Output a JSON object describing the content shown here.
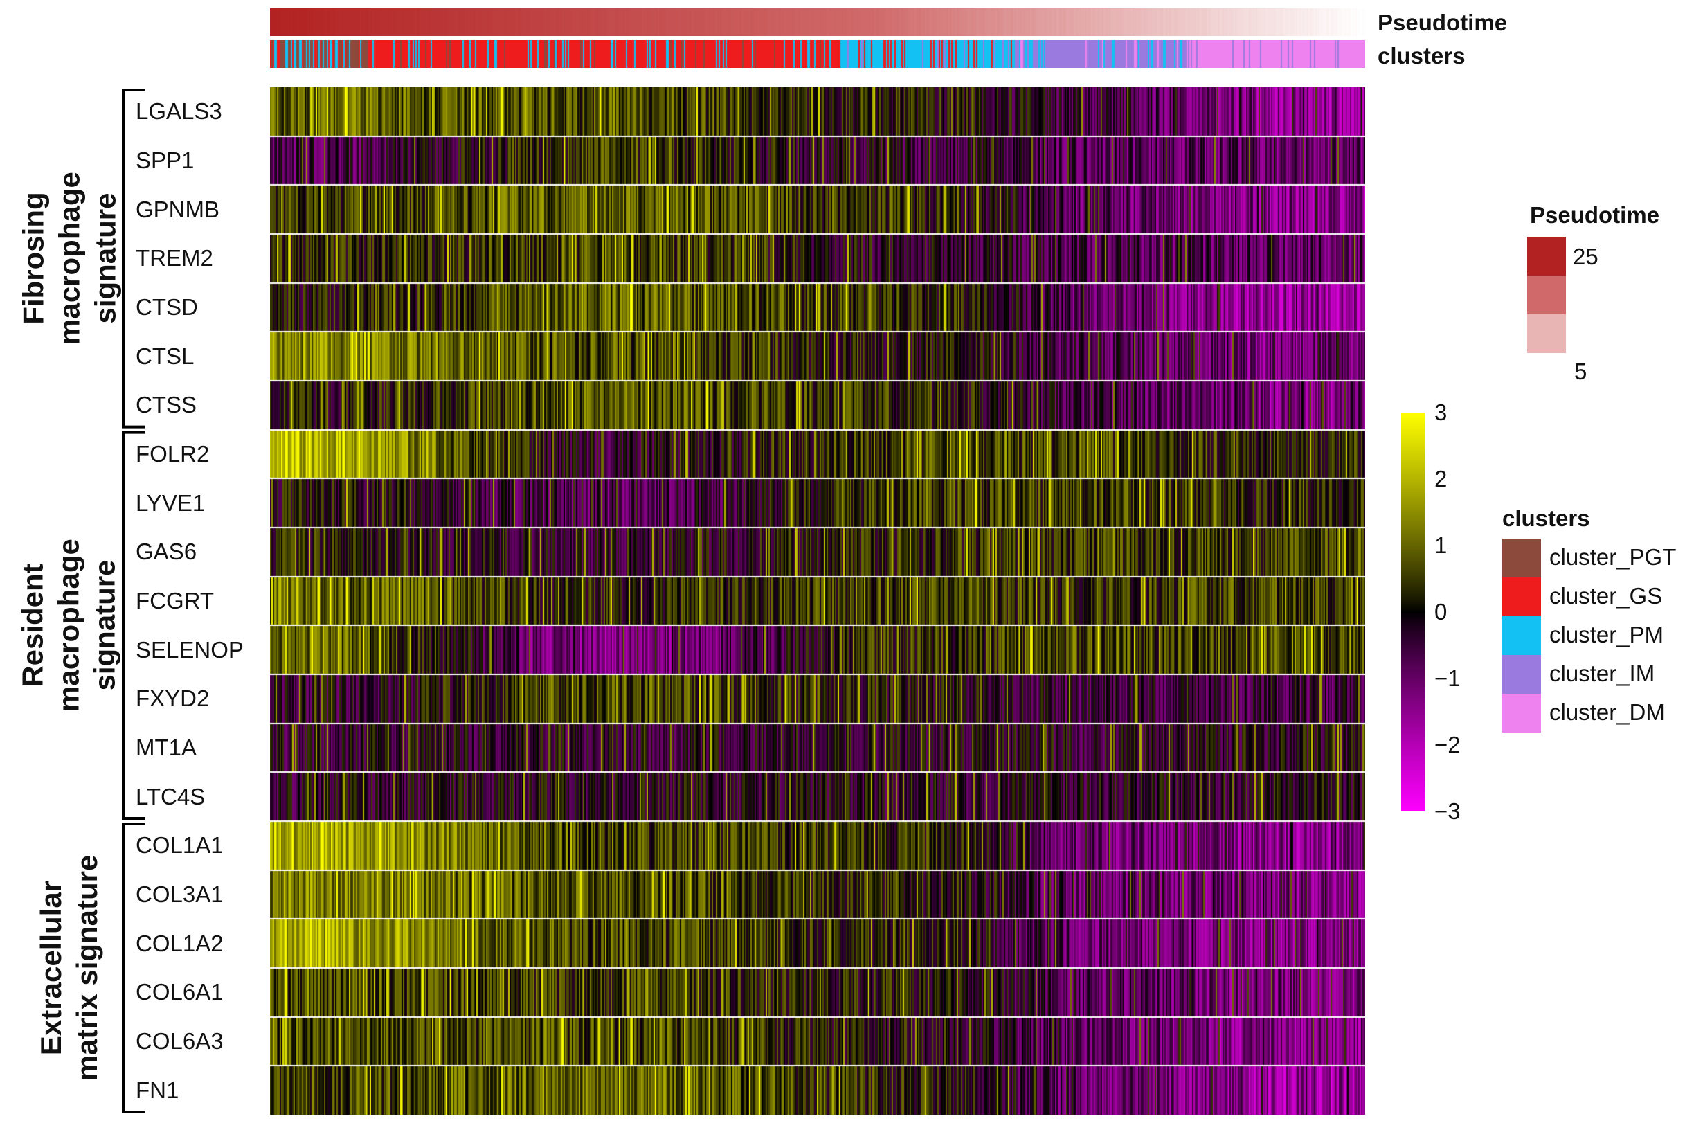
{
  "annotation_labels": {
    "pseudotime": "Pseudotime",
    "clusters": "clusters"
  },
  "groups": [
    {
      "title_lines": [
        "Fibrosing",
        "macrophage",
        "signature"
      ],
      "genes": [
        "LGALS3",
        "SPP1",
        "GPNMB",
        "TREM2",
        "CTSD",
        "CTSL",
        "CTSS"
      ]
    },
    {
      "title_lines": [
        "Resident",
        "macrophage",
        "signature"
      ],
      "genes": [
        "FOLR2",
        "LYVE1",
        "GAS6",
        "FCGRT",
        "SELENOP",
        "FXYD2",
        "MT1A",
        "LTC4S"
      ]
    },
    {
      "title_lines": [
        "Extracellular",
        "matrix signature"
      ],
      "genes": [
        "COL1A1",
        "COL3A1",
        "COL1A2",
        "COL6A1",
        "COL6A3",
        "FN1"
      ]
    }
  ],
  "pseudotime_legend": {
    "title": "Pseudotime",
    "high": "25",
    "low": "5",
    "colors": [
      "#b22222",
      "#d06a6a",
      "#e9b4b4"
    ]
  },
  "clusters_legend": {
    "title": "clusters",
    "items": [
      {
        "label": "cluster_PGT",
        "color": "#8b4a3c"
      },
      {
        "label": "cluster_GS",
        "color": "#ee1c1c"
      },
      {
        "label": "cluster_PM",
        "color": "#13c1f3"
      },
      {
        "label": "cluster_IM",
        "color": "#9b7ae0"
      },
      {
        "label": "cluster_DM",
        "color": "#ee82ee"
      }
    ]
  },
  "colorbar": {
    "ticks": [
      "3",
      "2",
      "1",
      "0",
      "−1",
      "−2",
      "−3"
    ],
    "colors": [
      "#ff00ff",
      "#000000",
      "#ffff00"
    ]
  },
  "chart_data": {
    "type": "heatmap",
    "value_range": [
      -3,
      3
    ],
    "column_order": "pseudotime (cells ordered by pseudotime, high to low)",
    "cluster_segments": [
      {
        "cluster": "cluster_PGT",
        "fraction": 0.09
      },
      {
        "cluster": "cluster_GS",
        "fraction": 0.43
      },
      {
        "cluster": "cluster_PM",
        "fraction": 0.16
      },
      {
        "cluster": "cluster_IM",
        "fraction": 0.16
      },
      {
        "cluster": "cluster_DM",
        "fraction": 0.16
      }
    ],
    "rows": [
      {
        "gene": "LGALS3",
        "means": [
          1.0,
          0.7,
          0.2,
          -0.6,
          -1.5
        ]
      },
      {
        "gene": "SPP1",
        "means": [
          -0.7,
          0.5,
          -0.4,
          -0.8,
          -1.0
        ]
      },
      {
        "gene": "GPNMB",
        "means": [
          0.4,
          1.0,
          0.2,
          -1.0,
          -1.4
        ]
      },
      {
        "gene": "TREM2",
        "means": [
          0.2,
          0.6,
          -0.2,
          -0.7,
          -0.9
        ]
      },
      {
        "gene": "CTSD",
        "means": [
          0.1,
          0.9,
          0.3,
          -0.9,
          -1.6
        ]
      },
      {
        "gene": "CTSL",
        "means": [
          1.4,
          0.7,
          0.0,
          -0.7,
          -1.2
        ]
      },
      {
        "gene": "CTSS",
        "means": [
          0.0,
          0.9,
          0.3,
          -0.7,
          -1.3
        ]
      },
      {
        "gene": "FOLR2",
        "means": [
          2.0,
          -0.3,
          0.6,
          0.6,
          0.3
        ]
      },
      {
        "gene": "LYVE1",
        "means": [
          0.0,
          -0.8,
          0.5,
          0.5,
          0.2
        ]
      },
      {
        "gene": "GAS6",
        "means": [
          0.2,
          -0.4,
          0.3,
          0.5,
          0.5
        ]
      },
      {
        "gene": "FCGRT",
        "means": [
          1.0,
          0.2,
          0.6,
          0.4,
          0.6
        ]
      },
      {
        "gene": "SELENOP",
        "means": [
          1.0,
          -1.4,
          0.4,
          0.6,
          0.6
        ]
      },
      {
        "gene": "FXYD2",
        "means": [
          -0.4,
          0.7,
          0.0,
          -0.5,
          -0.6
        ]
      },
      {
        "gene": "MT1A",
        "means": [
          -0.3,
          -0.3,
          -0.2,
          -0.3,
          -0.2
        ]
      },
      {
        "gene": "LTC4S",
        "means": [
          -0.3,
          -0.2,
          -0.2,
          -0.3,
          -0.1
        ]
      },
      {
        "gene": "COL1A1",
        "means": [
          1.8,
          0.6,
          0.3,
          -1.1,
          -1.4
        ]
      },
      {
        "gene": "COL3A1",
        "means": [
          1.3,
          0.8,
          0.2,
          -1.0,
          -1.3
        ]
      },
      {
        "gene": "COL1A2",
        "means": [
          1.8,
          0.7,
          0.2,
          -1.1,
          -1.4
        ]
      },
      {
        "gene": "COL6A1",
        "means": [
          0.7,
          0.5,
          0.1,
          -0.9,
          -1.2
        ]
      },
      {
        "gene": "COL6A3",
        "means": [
          0.8,
          0.6,
          0.0,
          -1.1,
          -1.4
        ]
      },
      {
        "gene": "FN1",
        "means": [
          0.6,
          1.1,
          0.2,
          -1.0,
          -1.6
        ]
      }
    ]
  }
}
